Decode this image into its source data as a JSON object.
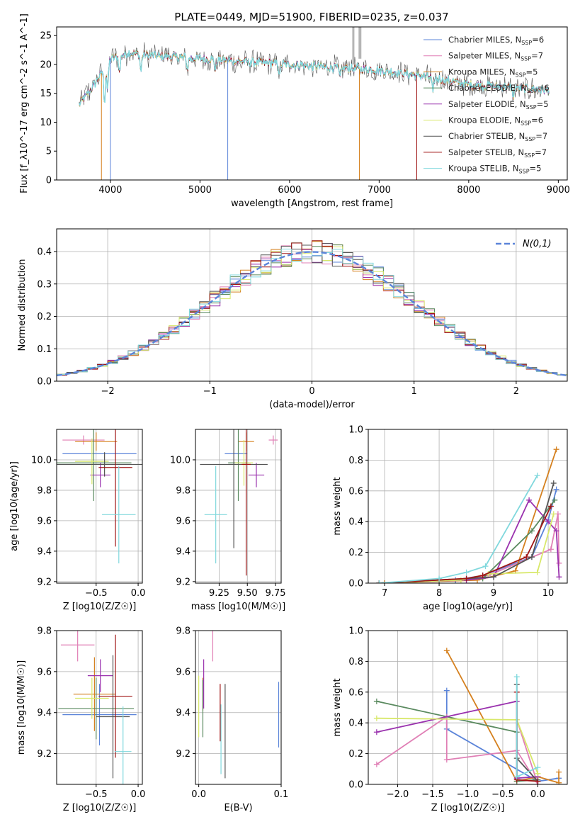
{
  "figure_title": "PLATE=0449, MJD=51900, FIBERID=0235, z=0.037",
  "colors": [
    "#5b84d9",
    "#e07fb5",
    "#d5801e",
    "#5a8a5f",
    "#9a32ae",
    "#d8e86a",
    "#555555",
    "#a01515",
    "#80d8dd"
  ],
  "chart_data": [
    {
      "id": "spectrum",
      "type": "line",
      "xlabel": "wavelength [Angstrom, rest frame]",
      "ylabel": "Flux [f_λ10^-17 erg cm^-2 s^-1 A^-1]",
      "xlim": [
        3400,
        9100
      ],
      "ylim": [
        0,
        26.5
      ],
      "xticks": [
        4000,
        5000,
        6000,
        7000,
        8000,
        9000
      ],
      "yticks": [
        0,
        5,
        10,
        15,
        20,
        25
      ],
      "legend_position": "upper-right",
      "series": [
        {
          "name": "Chabrier MILES, N_SSP=6"
        },
        {
          "name": "Salpeter MILES, N_SSP=7"
        },
        {
          "name": "Kroupa MILES, N_SSP=5"
        },
        {
          "name": "Chabrier ELODIE, N_SSP=6"
        },
        {
          "name": "Salpeter ELODIE, N_SSP=5"
        },
        {
          "name": "Kroupa ELODIE, N_SSP=6"
        },
        {
          "name": "Chabrier STELIB, N_SSP=7"
        },
        {
          "name": "Salpeter STELIB, N_SSP=7"
        },
        {
          "name": "Kroupa STELIB, N_SSP=5"
        }
      ],
      "continuum": {
        "x": [
          3650,
          3800,
          4000,
          4200,
          4500,
          5000,
          5500,
          6000,
          6500,
          7000,
          7500,
          8000,
          8500,
          8900
        ],
        "y": [
          13,
          16,
          21,
          22,
          21.5,
          21,
          20.5,
          20,
          19.5,
          19,
          18,
          16.5,
          16,
          15.5
        ]
      }
    },
    {
      "id": "residuals",
      "type": "line",
      "xlabel": "(data-model)/error",
      "ylabel": "Normed distribution",
      "xlim": [
        -2.5,
        2.5
      ],
      "ylim": [
        0,
        0.47
      ],
      "xticks": [
        -2,
        -1,
        0,
        1,
        2
      ],
      "yticks": [
        0.0,
        0.1,
        0.2,
        0.3,
        0.4
      ],
      "reference_label": "N(0,1)",
      "legend_position": "upper-right"
    },
    {
      "id": "age_vs_Z",
      "type": "scatter",
      "xlabel": "Z [log10(Z/Z☉)]",
      "ylabel": "age  [log10(age/yr)]",
      "xlim": [
        -0.97,
        0.05
      ],
      "ylim": [
        9.19,
        10.2
      ],
      "xticks": [
        -0.5,
        0.0
      ],
      "yticks": [
        9.2,
        9.4,
        9.6,
        9.8,
        10.0
      ],
      "points": [
        {
          "x": -0.46,
          "y": 10.04,
          "xerr": 0.44,
          "yerr": 0.0
        },
        {
          "x": -0.65,
          "y": 10.13,
          "xerr": 0.25,
          "yerr": 0.03
        },
        {
          "x": -0.5,
          "y": 10.12,
          "xerr": 0.25,
          "yerr": 0.06
        },
        {
          "x": -0.53,
          "y": 9.98,
          "xerr": 0.45,
          "yerr": 0.25
        },
        {
          "x": -0.45,
          "y": 9.9,
          "xerr": 0.12,
          "yerr": 0.08
        },
        {
          "x": -0.55,
          "y": 9.99,
          "xerr": 0.2,
          "yerr": 0.15
        },
        {
          "x": -0.4,
          "y": 9.97,
          "xerr": 0.6,
          "yerr": 0.08
        },
        {
          "x": -0.27,
          "y": 9.95,
          "xerr": 0.2,
          "yerr": 0.52
        },
        {
          "x": -0.23,
          "y": 9.64,
          "xerr": 0.2,
          "yerr": 0.32
        }
      ]
    },
    {
      "id": "age_vs_mass",
      "type": "scatter",
      "xlabel": "mass [log10(M/M☉)]",
      "ylabel": "",
      "xlim": [
        9.04,
        9.8
      ],
      "ylim": [
        9.19,
        10.2
      ],
      "xticks": [
        9.25,
        9.5,
        9.75
      ],
      "yticks": [
        9.2,
        9.4,
        9.6,
        9.8,
        10.0
      ],
      "points": [
        {
          "x": 9.4,
          "y": 10.04,
          "xerr": 0.1,
          "yerr": 0.0
        },
        {
          "x": 9.73,
          "y": 10.13,
          "xerr": 0.04,
          "yerr": 0.03
        },
        {
          "x": 9.49,
          "y": 10.12,
          "xerr": 0.07,
          "yerr": 0.06
        },
        {
          "x": 9.42,
          "y": 9.98,
          "xerr": 0.09,
          "yerr": 0.25
        },
        {
          "x": 9.58,
          "y": 9.9,
          "xerr": 0.07,
          "yerr": 0.08
        },
        {
          "x": 9.47,
          "y": 9.98,
          "xerr": 0.08,
          "yerr": 0.15
        },
        {
          "x": 9.38,
          "y": 9.97,
          "xerr": 0.3,
          "yerr": 0.55
        },
        {
          "x": 9.49,
          "y": 9.97,
          "xerr": 0.04,
          "yerr": 0.73
        },
        {
          "x": 9.22,
          "y": 9.64,
          "xerr": 0.1,
          "yerr": 0.32
        }
      ]
    },
    {
      "id": "weight_vs_age",
      "type": "line",
      "xlabel": "age  [log10(age/yr)]",
      "ylabel": "mass weight",
      "xlim": [
        6.7,
        10.35
      ],
      "ylim": [
        0,
        1.0
      ],
      "xticks": [
        7,
        8,
        9,
        10
      ],
      "yticks": [
        0.0,
        0.2,
        0.4,
        0.6,
        0.8,
        1.0
      ],
      "grid": true,
      "series": [
        {
          "x": [
            7.0,
            8.3,
            8.8,
            9.7,
            10.0,
            10.15
          ],
          "y": [
            0.0,
            0.02,
            0.05,
            0.17,
            0.41,
            0.61
          ]
        },
        {
          "x": [
            6.9,
            8.5,
            8.9,
            10.05,
            10.18,
            10.2
          ],
          "y": [
            0.0,
            0.02,
            0.05,
            0.22,
            0.45,
            0.13
          ]
        },
        {
          "x": [
            7.0,
            8.7,
            9.4,
            10.15
          ],
          "y": [
            0.0,
            0.02,
            0.08,
            0.87
          ]
        },
        {
          "x": [
            6.9,
            8.0,
            8.8,
            9.7,
            10.12
          ],
          "y": [
            0.0,
            0.02,
            0.03,
            0.34,
            0.54
          ]
        },
        {
          "x": [
            6.9,
            8.5,
            9.0,
            9.65,
            10.0,
            10.15,
            10.2
          ],
          "y": [
            0.0,
            0.02,
            0.04,
            0.54,
            0.4,
            0.34,
            0.04
          ]
        },
        {
          "x": [
            6.9,
            8.4,
            8.9,
            9.8,
            10.1
          ],
          "y": [
            0.0,
            0.02,
            0.06,
            0.07,
            0.45
          ]
        },
        {
          "x": [
            6.9,
            8.5,
            9.0,
            9.7,
            10.1
          ],
          "y": [
            0.0,
            0.03,
            0.04,
            0.17,
            0.65
          ]
        },
        {
          "x": [
            6.9,
            8.5,
            8.8,
            9.6,
            10.05
          ],
          "y": [
            0.0,
            0.03,
            0.05,
            0.17,
            0.5
          ]
        },
        {
          "x": [
            6.9,
            8.0,
            8.5,
            8.85,
            9.8
          ],
          "y": [
            0.0,
            0.03,
            0.07,
            0.11,
            0.7
          ]
        }
      ]
    },
    {
      "id": "mass_vs_Z",
      "type": "scatter",
      "xlabel": "Z [log10(Z/Z☉)]",
      "ylabel": "mass [log10(M/M☉)]",
      "xlim": [
        -0.97,
        0.05
      ],
      "ylim": [
        9.05,
        9.8
      ],
      "xticks": [
        -0.5,
        0.0
      ],
      "yticks": [
        9.2,
        9.4,
        9.6,
        9.8
      ],
      "points": [
        {
          "x": -0.46,
          "y": 9.39,
          "xerr": 0.44,
          "yerr": 0.15
        },
        {
          "x": -0.72,
          "y": 9.73,
          "xerr": 0.2,
          "yerr": 0.08
        },
        {
          "x": -0.52,
          "y": 9.49,
          "xerr": 0.25,
          "yerr": 0.18
        },
        {
          "x": -0.5,
          "y": 9.42,
          "xerr": 0.45,
          "yerr": 0.15
        },
        {
          "x": -0.45,
          "y": 9.58,
          "xerr": 0.15,
          "yerr": 0.08
        },
        {
          "x": -0.55,
          "y": 9.47,
          "xerr": 0.2,
          "yerr": 0.1
        },
        {
          "x": -0.3,
          "y": 9.38,
          "xerr": 0.2,
          "yerr": 0.3
        },
        {
          "x": -0.27,
          "y": 9.48,
          "xerr": 0.2,
          "yerr": 0.3
        },
        {
          "x": -0.18,
          "y": 9.21,
          "xerr": 0.1,
          "yerr": 0.22
        }
      ]
    },
    {
      "id": "mass_vs_ebv",
      "type": "scatter",
      "xlabel": "E(B-V)",
      "ylabel": "",
      "xlim": [
        -0.004,
        0.1
      ],
      "ylim": [
        9.05,
        9.8
      ],
      "xticks": [
        0.0,
        0.1
      ],
      "yticks": [
        9.2,
        9.4,
        9.6,
        9.8
      ],
      "points": [
        {
          "x": 0.097,
          "y": 9.39,
          "xerr": 0,
          "yerr": 0.16
        },
        {
          "x": 0.017,
          "y": 9.73,
          "xerr": 0,
          "yerr": 0.08
        },
        {
          "x": 0.005,
          "y": 9.49,
          "xerr": 0,
          "yerr": 0.08
        },
        {
          "x": 0.005,
          "y": 9.42,
          "xerr": 0,
          "yerr": 0.14
        },
        {
          "x": 0.006,
          "y": 9.54,
          "xerr": 0,
          "yerr": 0.12
        },
        {
          "x": 0.0,
          "y": 9.43,
          "xerr": 0,
          "yerr": 0.15
        },
        {
          "x": 0.032,
          "y": 9.31,
          "xerr": 0,
          "yerr": 0.23
        },
        {
          "x": 0.026,
          "y": 9.4,
          "xerr": 0,
          "yerr": 0.14
        },
        {
          "x": 0.027,
          "y": 9.27,
          "xerr": 0,
          "yerr": 0.17
        }
      ]
    },
    {
      "id": "weight_vs_Z",
      "type": "line",
      "xlabel": "Z [log10(Z/Z☉)]",
      "ylabel": "mass weight",
      "xlim": [
        -2.42,
        0.42
      ],
      "ylim": [
        0,
        1.0
      ],
      "xticks": [
        -2.0,
        -1.5,
        -1.0,
        -0.5,
        0.0
      ],
      "yticks": [
        0.0,
        0.2,
        0.4,
        0.6,
        0.8,
        1.0
      ],
      "grid": true,
      "series": [
        {
          "x": [
            -1.3,
            -1.3,
            0.0,
            0.3
          ],
          "y": [
            0.61,
            0.36,
            0.02,
            0.04
          ]
        },
        {
          "x": [
            -2.3,
            -1.3,
            -1.3,
            -0.3,
            0.0,
            -0.3
          ],
          "y": [
            0.13,
            0.44,
            0.16,
            0.22,
            0.0,
            0.42
          ]
        },
        {
          "x": [
            -1.3,
            -0.3,
            0.0,
            0.3,
            0.3
          ],
          "y": [
            0.87,
            0.02,
            0.05,
            0.01,
            0.08
          ]
        },
        {
          "x": [
            -2.3,
            -0.3,
            -0.3,
            0.0
          ],
          "y": [
            0.54,
            0.34,
            0.02,
            0.03
          ]
        },
        {
          "x": [
            -2.3,
            -0.3,
            -0.3,
            0.0
          ],
          "y": [
            0.34,
            0.54,
            0.04,
            0.05
          ]
        },
        {
          "x": [
            -2.3,
            -0.3,
            0.0
          ],
          "y": [
            0.43,
            0.42,
            0.07
          ]
        },
        {
          "x": [
            -0.3,
            -0.3,
            0.0
          ],
          "y": [
            0.65,
            0.17,
            0.02
          ]
        },
        {
          "x": [
            -0.3,
            -0.3,
            0.0
          ],
          "y": [
            0.6,
            0.03,
            0.02
          ]
        },
        {
          "x": [
            -0.3,
            -0.3,
            0.0
          ],
          "y": [
            0.7,
            0.05,
            0.11
          ]
        }
      ]
    }
  ]
}
